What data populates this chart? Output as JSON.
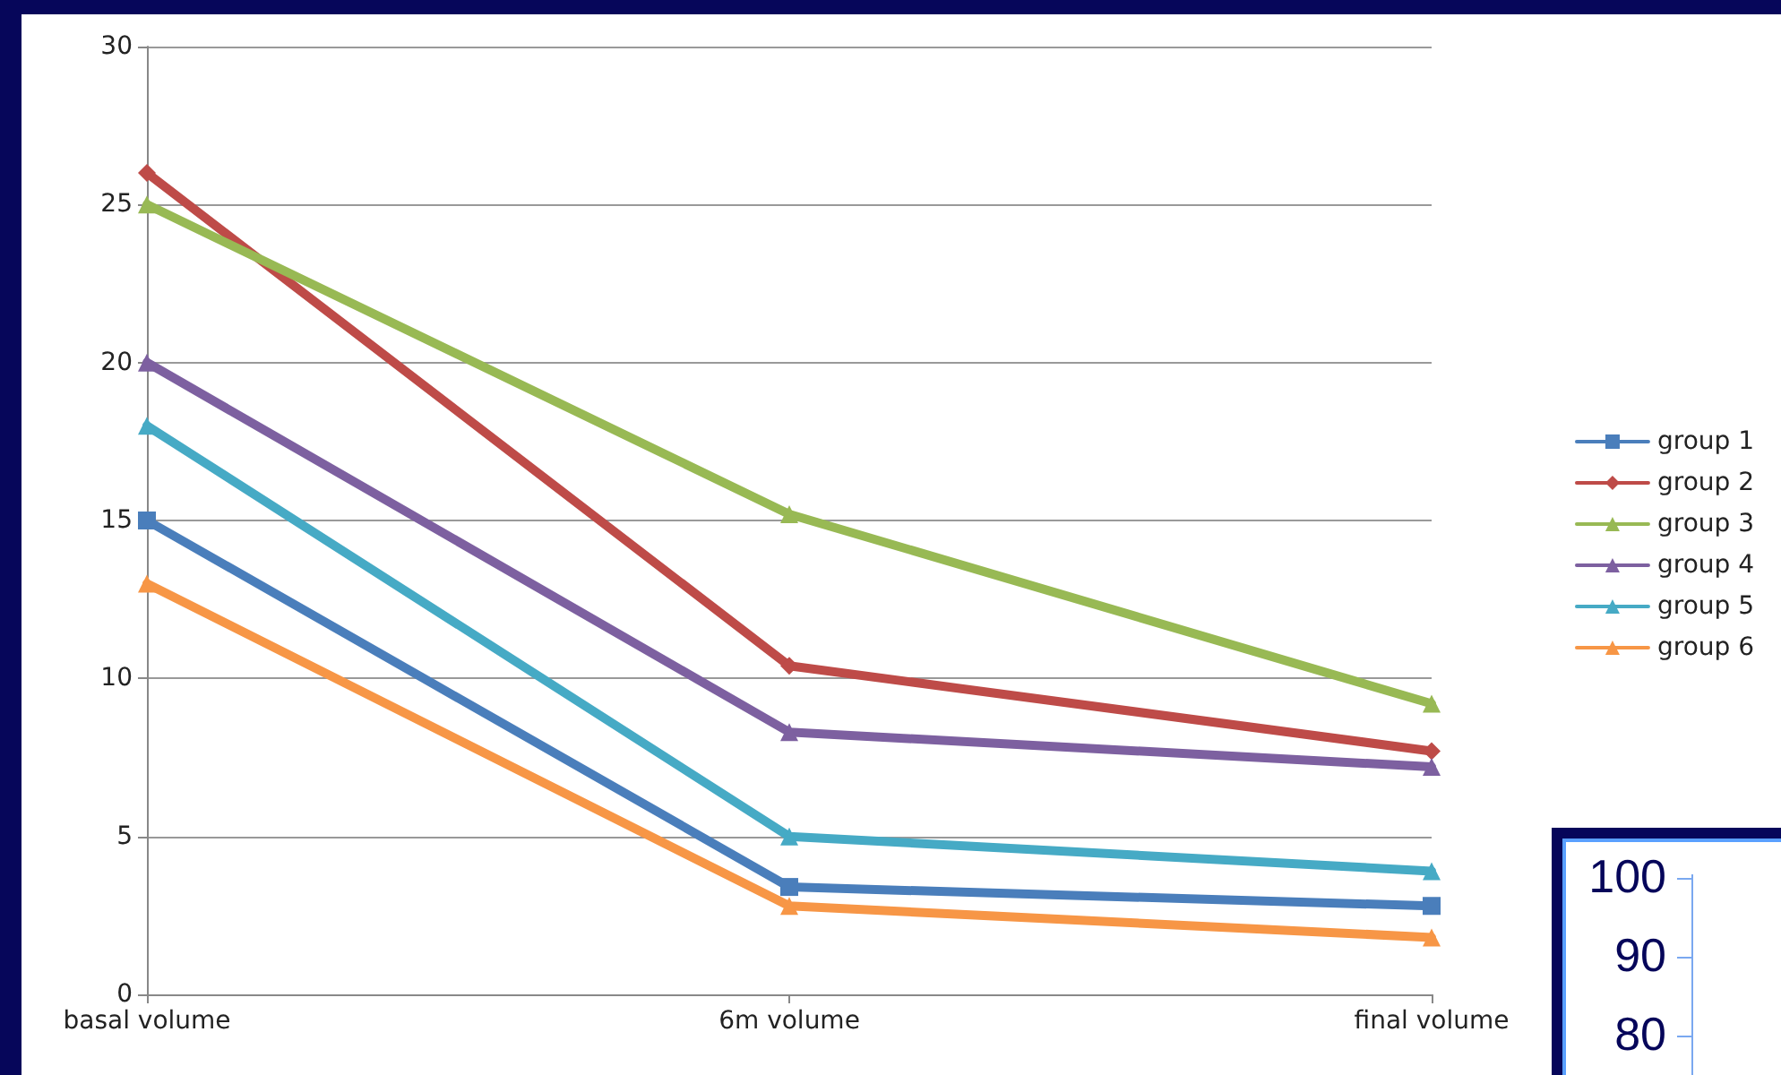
{
  "chart_data": [
    {
      "type": "line",
      "categories": [
        "basal volume",
        "6m volume",
        "final volume"
      ],
      "series": [
        {
          "name": "group 1",
          "color": "#4a7ebb",
          "marker": "square",
          "values": [
            15,
            3.4,
            2.8
          ]
        },
        {
          "name": "group 2",
          "color": "#be4b48",
          "marker": "diamond",
          "values": [
            26,
            10.4,
            7.7
          ]
        },
        {
          "name": "group 3",
          "color": "#98b954",
          "marker": "triangle",
          "values": [
            25,
            15.2,
            9.2
          ]
        },
        {
          "name": "group 4",
          "color": "#7d60a0",
          "marker": "triangle",
          "values": [
            20,
            8.3,
            7.2
          ]
        },
        {
          "name": "group 5",
          "color": "#46aac5",
          "marker": "triangle",
          "values": [
            18,
            5.0,
            3.9
          ]
        },
        {
          "name": "group 6",
          "color": "#f79646",
          "marker": "triangle",
          "values": [
            13,
            2.8,
            1.8
          ]
        }
      ],
      "ylim": [
        0,
        30
      ],
      "yticks": [
        0,
        5,
        10,
        15,
        20,
        25,
        30
      ],
      "grid": "y",
      "legend": "right",
      "line_style": "solid"
    },
    {
      "type": "other",
      "annotations": [
        "100",
        "90",
        "80"
      ]
    }
  ]
}
